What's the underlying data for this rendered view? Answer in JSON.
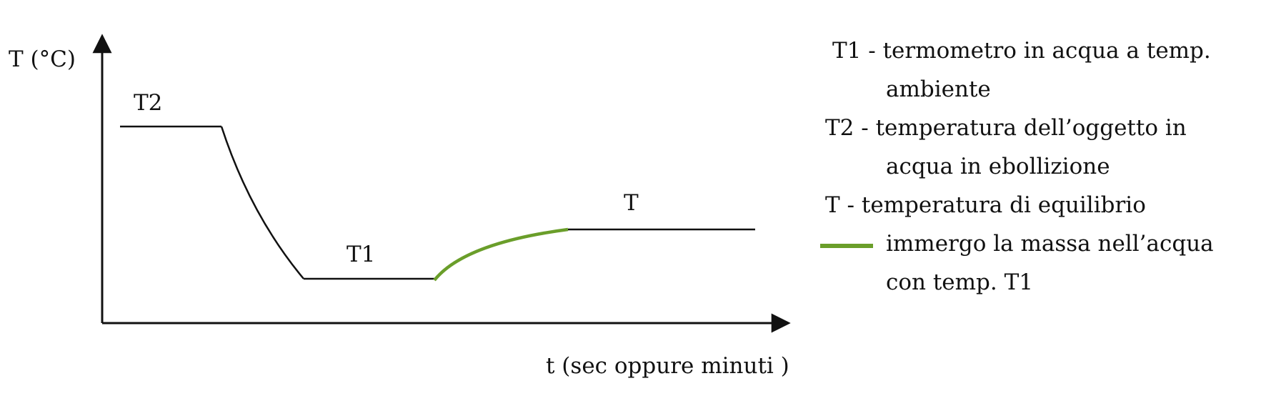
{
  "diagram": {
    "y_axis_label": "T (°C)",
    "x_axis_label": "t (sec oppure minuti )",
    "curve_labels": {
      "t2": "T2",
      "t1": "T1",
      "t": "T"
    },
    "colors": {
      "line": "#111111",
      "immersion_curve": "#6a9e2a"
    }
  },
  "legend": {
    "t1_line1": "T1 - termometro in acqua a temp.",
    "t1_line2": "ambiente",
    "t2_line1": "T2 - temperatura dell’oggetto in",
    "t2_line2": "acqua in ebollizione",
    "t_line": "T - temperatura di equilibrio",
    "green_line1": "immergo la massa nell’acqua",
    "green_line2": "con temp. T1"
  }
}
